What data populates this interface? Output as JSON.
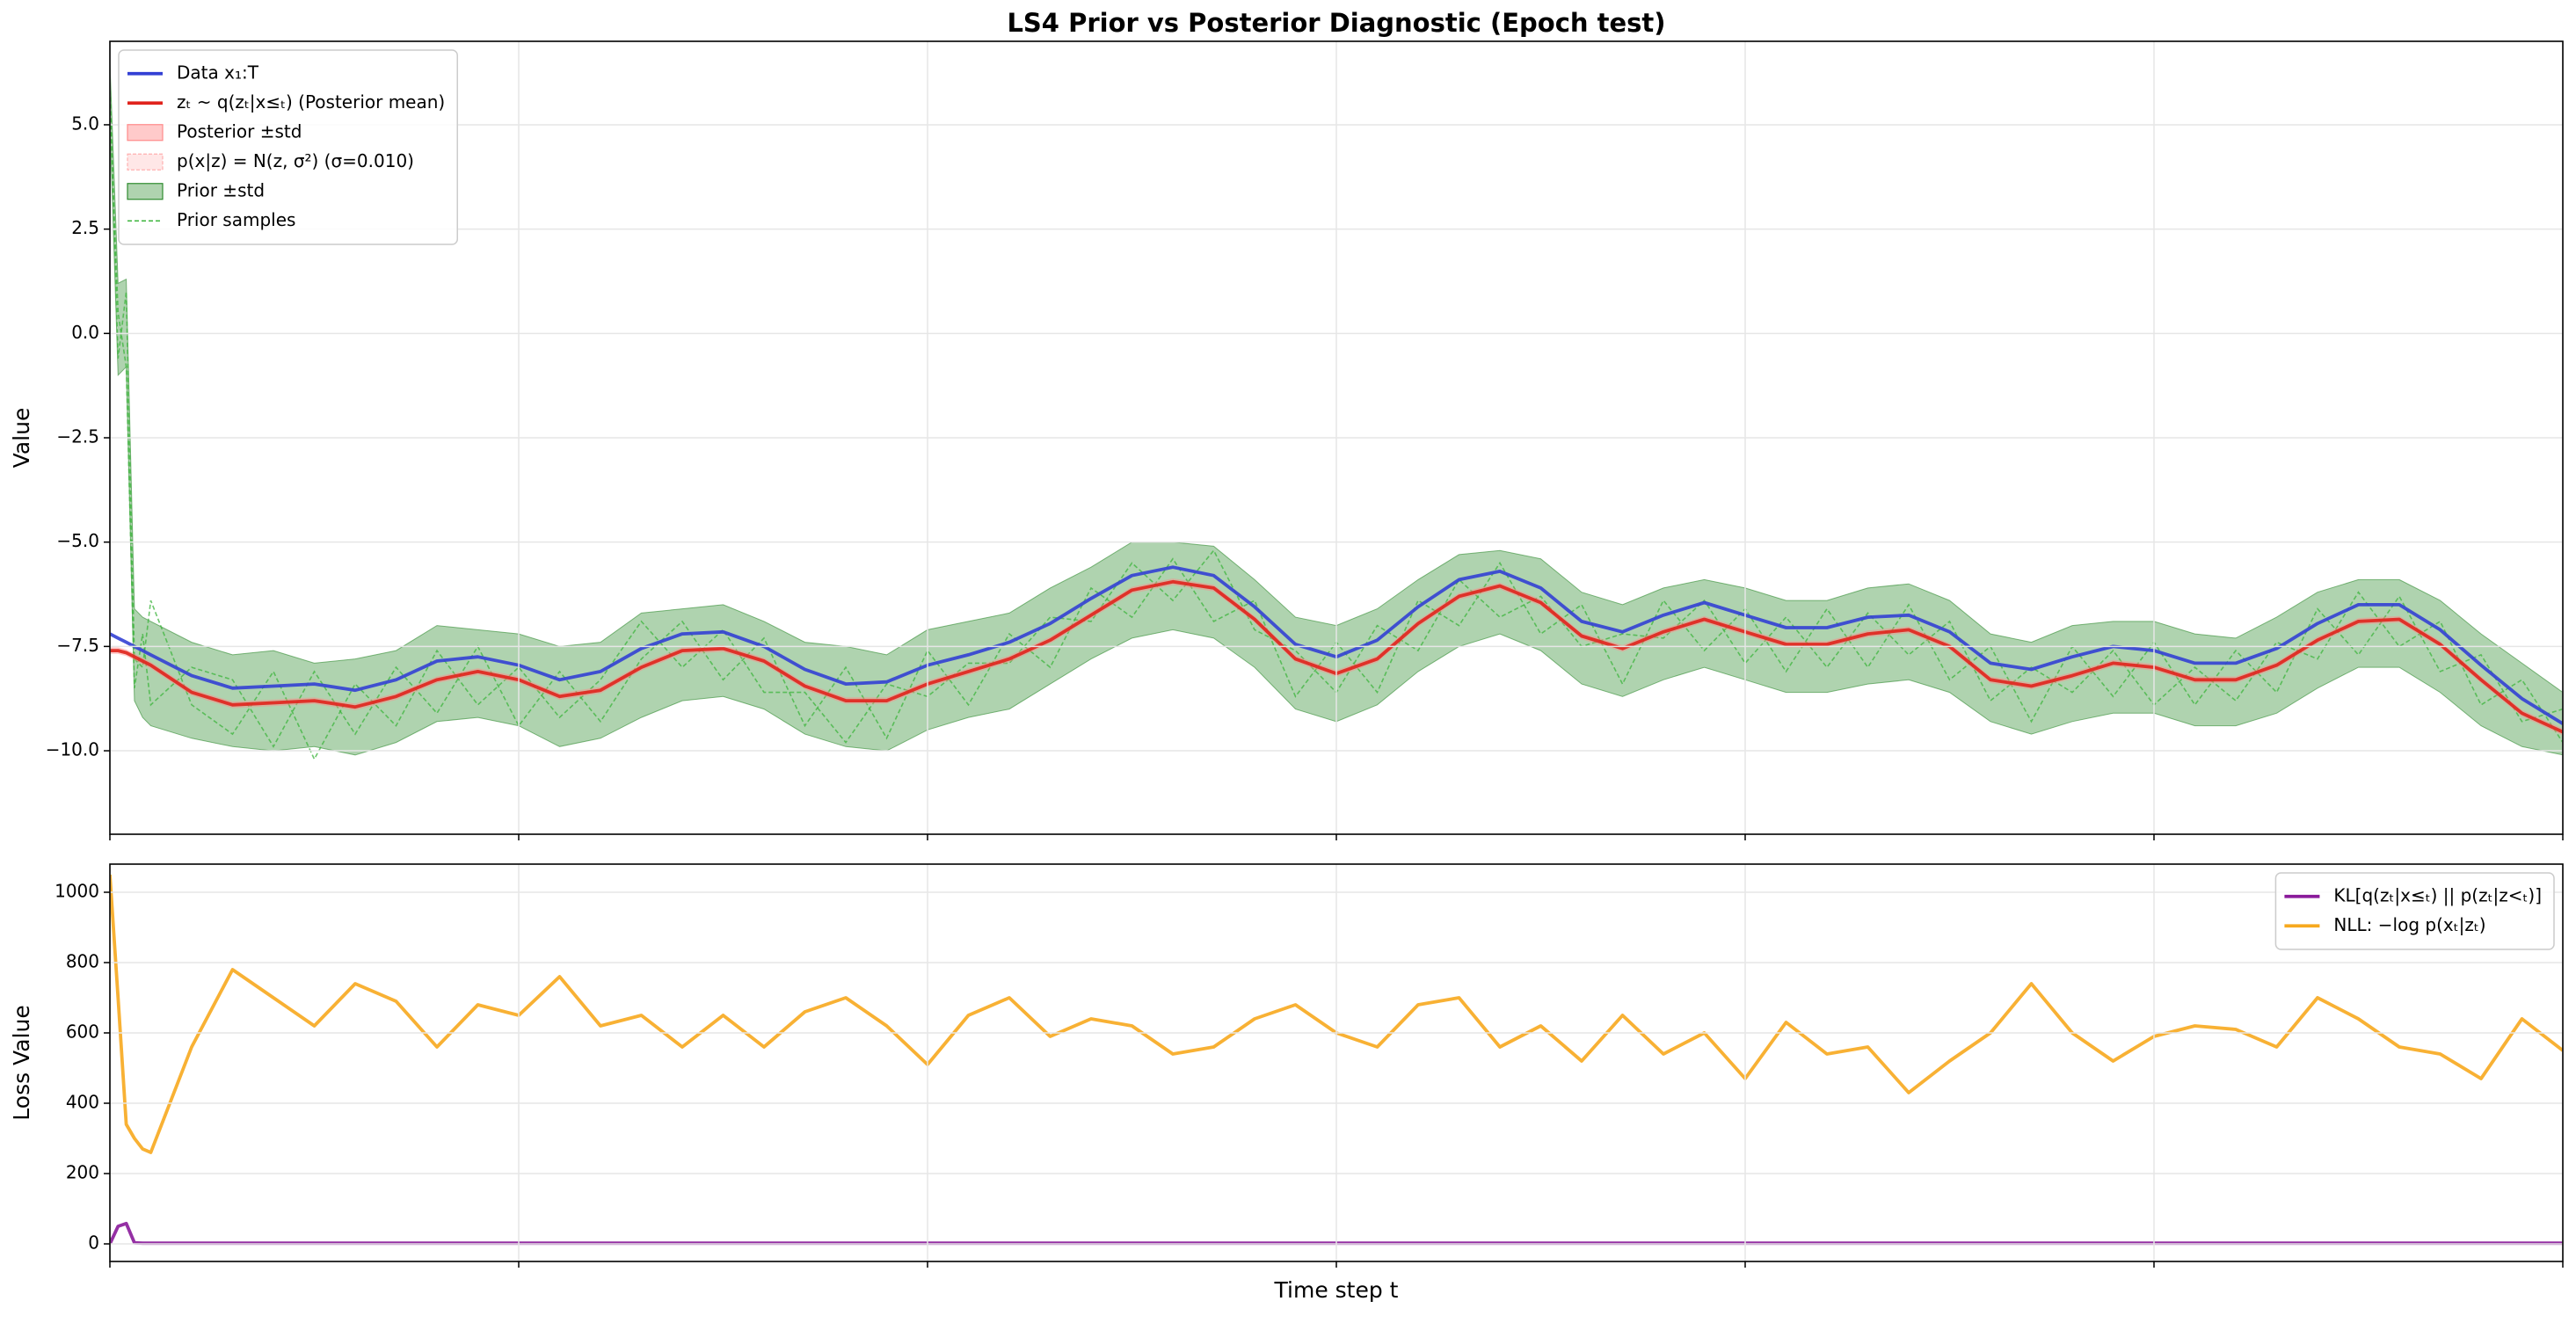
{
  "title": "LS4 Prior vs Posterior Diagnostic (Epoch test)",
  "chart_data": [
    {
      "type": "line",
      "ylabel": "Value",
      "grid": true,
      "legend": "upper left",
      "x": [
        0,
        1,
        2,
        3,
        4,
        5,
        10,
        15,
        20,
        25,
        30,
        35,
        40,
        45,
        50,
        55,
        60,
        65,
        70,
        75,
        80,
        85,
        90,
        95,
        100,
        105,
        110,
        115,
        120,
        125,
        130,
        135,
        140,
        145,
        150,
        155,
        160,
        165,
        170,
        175,
        180,
        185,
        190,
        195,
        200,
        205,
        210,
        215,
        220,
        225,
        230,
        235,
        240,
        245,
        250,
        255,
        260,
        265,
        270,
        275,
        280,
        285,
        290,
        295,
        300
      ],
      "xlim": [
        0,
        300
      ],
      "xticks": [
        0,
        50,
        100,
        150,
        200,
        250,
        300
      ],
      "ylim": [
        -12,
        7
      ],
      "yticks": [
        {
          "value": -10,
          "label": "−10.0"
        },
        {
          "value": -7.5,
          "label": "−7.5"
        },
        {
          "value": -5,
          "label": "−5.0"
        },
        {
          "value": -2.5,
          "label": "−2.5"
        },
        {
          "value": 0,
          "label": "0.0"
        },
        {
          "value": 2.5,
          "label": "2.5"
        },
        {
          "value": 5,
          "label": "5.0"
        }
      ],
      "series": [
        {
          "name": "Data x₁:T",
          "kind": "line",
          "color": "#3340d4",
          "values": [
            -7.2,
            -7.3,
            -7.4,
            -7.5,
            -7.6,
            -7.7,
            -8.2,
            -8.5,
            -8.45,
            -8.4,
            -8.55,
            -8.3,
            -7.85,
            -7.75,
            -7.95,
            -8.3,
            -8.1,
            -7.55,
            -7.2,
            -7.15,
            -7.5,
            -8.05,
            -8.4,
            -8.35,
            -7.95,
            -7.7,
            -7.4,
            -6.95,
            -6.35,
            -5.8,
            -5.6,
            -5.8,
            -6.55,
            -7.45,
            -7.75,
            -7.35,
            -6.55,
            -5.9,
            -5.7,
            -6.1,
            -6.9,
            -7.15,
            -6.75,
            -6.45,
            -6.75,
            -7.05,
            -7.05,
            -6.8,
            -6.75,
            -7.15,
            -7.9,
            -8.05,
            -7.75,
            -7.5,
            -7.6,
            -7.9,
            -7.9,
            -7.55,
            -6.95,
            -6.5,
            -6.5,
            -7.1,
            -7.95,
            -8.75,
            -9.35
          ]
        },
        {
          "name": "zₜ ~ q(zₜ|x≤ₜ) (Posterior mean)",
          "kind": "line",
          "color": "#e0231c",
          "values": [
            -7.6,
            -7.6,
            -7.65,
            -7.75,
            -7.85,
            -7.95,
            -8.6,
            -8.9,
            -8.85,
            -8.8,
            -8.95,
            -8.7,
            -8.3,
            -8.1,
            -8.3,
            -8.7,
            -8.55,
            -8.0,
            -7.6,
            -7.55,
            -7.85,
            -8.45,
            -8.8,
            -8.8,
            -8.4,
            -8.1,
            -7.8,
            -7.35,
            -6.75,
            -6.15,
            -5.95,
            -6.1,
            -6.85,
            -7.8,
            -8.15,
            -7.8,
            -6.95,
            -6.3,
            -6.05,
            -6.45,
            -7.25,
            -7.55,
            -7.15,
            -6.85,
            -7.15,
            -7.45,
            -7.45,
            -7.2,
            -7.1,
            -7.5,
            -8.3,
            -8.45,
            -8.2,
            -7.9,
            -8.0,
            -8.3,
            -8.3,
            -7.95,
            -7.35,
            -6.9,
            -6.85,
            -7.45,
            -8.3,
            -9.1,
            -9.55
          ]
        },
        {
          "name": "Posterior ±std",
          "kind": "band",
          "color": "#ff8a8a",
          "alpha": 0.45,
          "std": 0.08
        },
        {
          "name": "p(x|z) = N(z, σ²) (σ=0.010)",
          "kind": "band",
          "color": "#ffb0b0",
          "alpha": 0.3,
          "std": 0.01
        },
        {
          "name": "Prior ±std",
          "kind": "range",
          "color": "#2e8b2e",
          "alpha": 0.38,
          "upper": [
            6.5,
            1.2,
            1.3,
            -6.6,
            -6.8,
            -6.9,
            -7.4,
            -7.7,
            -7.6,
            -7.9,
            -7.8,
            -7.6,
            -7.0,
            -7.1,
            -7.2,
            -7.5,
            -7.4,
            -6.7,
            -6.6,
            -6.5,
            -6.9,
            -7.4,
            -7.5,
            -7.7,
            -7.1,
            -6.9,
            -6.7,
            -6.1,
            -5.6,
            -5.0,
            -5.0,
            -5.1,
            -5.9,
            -6.8,
            -7.0,
            -6.6,
            -5.9,
            -5.3,
            -5.2,
            -5.4,
            -6.2,
            -6.5,
            -6.1,
            -5.9,
            -6.1,
            -6.4,
            -6.4,
            -6.1,
            -6.0,
            -6.4,
            -7.2,
            -7.4,
            -7.0,
            -6.9,
            -6.9,
            -7.2,
            -7.3,
            -6.8,
            -6.2,
            -5.9,
            -5.9,
            -6.4,
            -7.2,
            -7.9,
            -8.6
          ],
          "lower": [
            5.0,
            -1.0,
            -0.8,
            -8.8,
            -9.2,
            -9.4,
            -9.7,
            -9.9,
            -10.0,
            -9.9,
            -10.1,
            -9.8,
            -9.3,
            -9.2,
            -9.4,
            -9.9,
            -9.7,
            -9.2,
            -8.8,
            -8.7,
            -9.0,
            -9.6,
            -9.9,
            -10.0,
            -9.5,
            -9.2,
            -9.0,
            -8.4,
            -7.8,
            -7.3,
            -7.1,
            -7.3,
            -8.0,
            -9.0,
            -9.3,
            -8.9,
            -8.1,
            -7.5,
            -7.2,
            -7.6,
            -8.4,
            -8.7,
            -8.3,
            -8.0,
            -8.3,
            -8.6,
            -8.6,
            -8.4,
            -8.3,
            -8.6,
            -9.3,
            -9.6,
            -9.3,
            -9.1,
            -9.1,
            -9.4,
            -9.4,
            -9.1,
            -8.5,
            -8.0,
            -8.0,
            -8.6,
            -9.4,
            -9.9,
            -10.1
          ]
        },
        {
          "name": "Prior samples",
          "kind": "samples",
          "color": "#3cb43c",
          "samples": [
            [
              6.0,
              -0.6,
              1.0,
              -7.8,
              -8.0,
              -6.4,
              -8.9,
              -9.6,
              -8.1,
              -10.2,
              -8.4,
              -9.4,
              -7.6,
              -8.9,
              -8.0,
              -9.2,
              -8.3,
              -6.9,
              -8.0,
              -7.1,
              -8.6,
              -8.6,
              -9.8,
              -8.4,
              -8.7,
              -7.9,
              -7.9,
              -6.8,
              -6.9,
              -5.5,
              -6.4,
              -5.2,
              -7.1,
              -7.6,
              -8.6,
              -7.0,
              -7.6,
              -5.9,
              -6.8,
              -6.3,
              -7.5,
              -7.2,
              -7.3,
              -6.4,
              -7.9,
              -6.8,
              -8.0,
              -6.7,
              -7.7,
              -6.9,
              -8.8,
              -8.0,
              -8.6,
              -7.6,
              -8.9,
              -8.0,
              -8.8,
              -7.4,
              -7.8,
              -6.2,
              -7.5,
              -6.9,
              -8.9,
              -8.3,
              -9.8
            ],
            [
              5.5,
              0.5,
              -0.8,
              -8.5,
              -7.2,
              -8.9,
              -8.0,
              -8.3,
              -9.9,
              -8.1,
              -9.6,
              -8.0,
              -9.1,
              -7.5,
              -9.4,
              -8.1,
              -9.3,
              -7.8,
              -6.9,
              -8.3,
              -7.3,
              -9.4,
              -8.0,
              -9.7,
              -7.6,
              -8.9,
              -7.2,
              -8.0,
              -6.1,
              -6.8,
              -5.4,
              -6.9,
              -6.4,
              -8.7,
              -7.4,
              -8.6,
              -6.4,
              -7.0,
              -5.5,
              -7.2,
              -6.5,
              -8.4,
              -6.4,
              -7.6,
              -6.6,
              -8.1,
              -6.6,
              -8.0,
              -6.5,
              -8.3,
              -7.5,
              -9.3,
              -7.5,
              -8.7,
              -7.4,
              -8.9,
              -7.6,
              -8.6,
              -6.6,
              -7.7,
              -6.3,
              -8.1,
              -7.7,
              -9.3,
              -9.0
            ]
          ]
        }
      ]
    },
    {
      "type": "line",
      "ylabel": "Loss Value",
      "xlabel": "Time step t",
      "grid": true,
      "legend": "upper right",
      "x": [
        0,
        1,
        2,
        3,
        4,
        5,
        10,
        15,
        20,
        25,
        30,
        35,
        40,
        45,
        50,
        55,
        60,
        65,
        70,
        75,
        80,
        85,
        90,
        95,
        100,
        105,
        110,
        115,
        120,
        125,
        130,
        135,
        140,
        145,
        150,
        155,
        160,
        165,
        170,
        175,
        180,
        185,
        190,
        195,
        200,
        205,
        210,
        215,
        220,
        225,
        230,
        235,
        240,
        245,
        250,
        255,
        260,
        265,
        270,
        275,
        280,
        285,
        290,
        295,
        300
      ],
      "xlim": [
        0,
        300
      ],
      "xticks": [
        0,
        50,
        100,
        150,
        200,
        250,
        300
      ],
      "ylim": [
        -50,
        1080
      ],
      "yticks": [
        0,
        200,
        400,
        600,
        800,
        1000
      ],
      "series": [
        {
          "name": "KL[q(zₜ|x≤ₜ) || p(zₜ|z<ₜ)]",
          "kind": "line",
          "color": "#8a1a9a",
          "values": [
            0,
            50,
            58,
            3,
            2,
            2,
            2,
            2,
            2,
            2,
            2,
            2,
            2,
            2,
            2,
            2,
            2,
            2,
            2,
            2,
            2,
            2,
            2,
            2,
            2,
            2,
            2,
            2,
            2,
            2,
            2,
            2,
            2,
            2,
            2,
            2,
            2,
            2,
            2,
            2,
            2,
            2,
            2,
            2,
            2,
            2,
            2,
            2,
            2,
            2,
            2,
            2,
            2,
            2,
            2,
            2,
            2,
            2,
            2,
            2,
            2,
            2,
            2,
            2,
            2
          ]
        },
        {
          "name": "NLL: −log p(xₜ|zₜ)",
          "kind": "line",
          "color": "#f7a91e",
          "values": [
            1050,
            700,
            340,
            300,
            270,
            260,
            560,
            780,
            700,
            620,
            740,
            690,
            560,
            680,
            650,
            760,
            620,
            650,
            560,
            650,
            560,
            660,
            700,
            620,
            510,
            650,
            700,
            590,
            640,
            620,
            540,
            560,
            640,
            680,
            600,
            560,
            680,
            700,
            560,
            620,
            520,
            650,
            540,
            600,
            470,
            630,
            540,
            560,
            430,
            520,
            600,
            740,
            600,
            520,
            590,
            620,
            610,
            560,
            700,
            640,
            560,
            540,
            470,
            640,
            550
          ]
        }
      ]
    }
  ]
}
